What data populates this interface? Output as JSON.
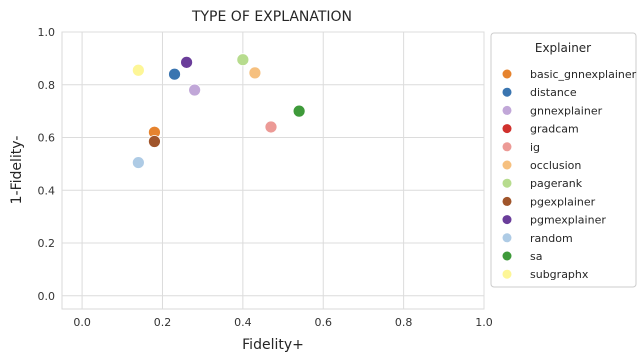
{
  "chart_data": {
    "type": "scatter",
    "title": "TYPE OF EXPLANATION",
    "xlabel": "Fidelity+",
    "ylabel": "1-Fidelity-",
    "xlim": [
      -0.05,
      1.0
    ],
    "ylim": [
      -0.05,
      1.0
    ],
    "xticks": [
      0.0,
      0.2,
      0.4,
      0.6,
      0.8,
      1.0
    ],
    "yticks": [
      0.0,
      0.2,
      0.4,
      0.6,
      0.8,
      1.0
    ],
    "xtick_labels": [
      "0.0",
      "0.2",
      "0.4",
      "0.6",
      "0.8",
      "1.0"
    ],
    "ytick_labels": [
      "0.0",
      "0.2",
      "0.4",
      "0.6",
      "0.8",
      "1.0"
    ],
    "grid": true,
    "legend": {
      "title": "Explainer",
      "placement": "outside-right"
    },
    "series": [
      {
        "name": "basic_gnnexplainer",
        "color": "#e6832e",
        "points": [
          {
            "x": 0.18,
            "y": 0.62
          }
        ]
      },
      {
        "name": "distance",
        "color": "#3a75b0",
        "points": [
          {
            "x": 0.23,
            "y": 0.84
          }
        ]
      },
      {
        "name": "gnnexplainer",
        "color": "#c1a7d8",
        "points": [
          {
            "x": 0.28,
            "y": 0.78
          }
        ]
      },
      {
        "name": "gradcam",
        "color": "#d0312d",
        "points": []
      },
      {
        "name": "ig",
        "color": "#ec9a96",
        "points": [
          {
            "x": 0.47,
            "y": 0.64
          }
        ]
      },
      {
        "name": "occlusion",
        "color": "#f6c07f",
        "points": [
          {
            "x": 0.43,
            "y": 0.845
          }
        ]
      },
      {
        "name": "pagerank",
        "color": "#b7dc8e",
        "points": [
          {
            "x": 0.4,
            "y": 0.895
          }
        ]
      },
      {
        "name": "pgexplainer",
        "color": "#a0552b",
        "points": [
          {
            "x": 0.18,
            "y": 0.585
          }
        ]
      },
      {
        "name": "pgmexplainer",
        "color": "#6a3d9a",
        "points": [
          {
            "x": 0.26,
            "y": 0.885
          }
        ]
      },
      {
        "name": "random",
        "color": "#aecbe5",
        "points": [
          {
            "x": 0.14,
            "y": 0.505
          }
        ]
      },
      {
        "name": "sa",
        "color": "#3e9a3a",
        "points": [
          {
            "x": 0.54,
            "y": 0.7
          }
        ]
      },
      {
        "name": "subgraphx",
        "color": "#fdf697",
        "points": [
          {
            "x": 0.14,
            "y": 0.855
          }
        ]
      }
    ]
  }
}
